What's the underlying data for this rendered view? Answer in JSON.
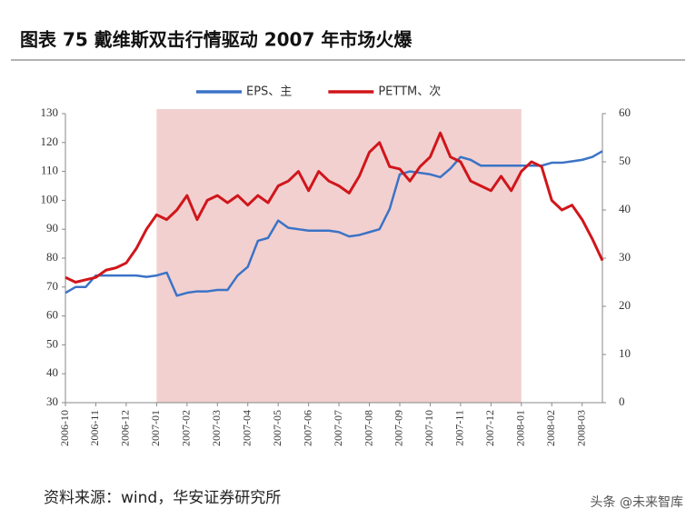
{
  "chart_data": {
    "type": "line",
    "title": "图表 75 戴维斯双击行情驱动 2007 年市场火爆",
    "source": "资料来源：wind，华安证券研究所",
    "watermark": "头条 @未来智库",
    "categories": [
      "2006-10",
      null,
      null,
      "2006-11",
      null,
      null,
      "2006-12",
      null,
      null,
      "2007-01",
      null,
      null,
      "2007-02",
      null,
      null,
      "2007-03",
      null,
      null,
      "2007-04",
      null,
      null,
      "2007-05",
      null,
      null,
      "2007-06",
      null,
      null,
      "2007-07",
      null,
      null,
      "2007-08",
      null,
      null,
      "2007-09",
      null,
      null,
      "2007-10",
      null,
      null,
      "2007-11",
      null,
      null,
      "2007-12",
      null,
      null,
      "2008-01",
      null,
      null,
      "2008-02",
      null,
      null,
      "2008-03",
      null,
      null
    ],
    "highlight": {
      "from": "2007-01",
      "to": "2008-01",
      "color": "#f2d0d0"
    },
    "series": [
      {
        "name": "EPS、主",
        "color": "#3b73c6",
        "axis": "y",
        "values": [
          68,
          70,
          70,
          74,
          74,
          74,
          74,
          74,
          73.5,
          74,
          75,
          67,
          68,
          68.5,
          68.5,
          69,
          69,
          74,
          77,
          86,
          87,
          93,
          90.5,
          90,
          89.5,
          89.5,
          89.5,
          89,
          87.5,
          88,
          89,
          90,
          97,
          109,
          110,
          109.5,
          109,
          108,
          111,
          115,
          114,
          112,
          112,
          112,
          112,
          112,
          112,
          112,
          113,
          113,
          113.5,
          114,
          115,
          117
        ]
      },
      {
        "name": "PETTM、次",
        "color": "#d0161b",
        "axis": "y2",
        "values": [
          26,
          25,
          25.5,
          26,
          27.5,
          28,
          29,
          32,
          36,
          39,
          38,
          40,
          43,
          38,
          42,
          43,
          41.5,
          43,
          41,
          43,
          41.5,
          45,
          46,
          48,
          44,
          48,
          46,
          45,
          43.5,
          47,
          52,
          54,
          49,
          48.5,
          46,
          49,
          51,
          56,
          51,
          50,
          46,
          45,
          44,
          47,
          44,
          48,
          50,
          49,
          42,
          40,
          41,
          38,
          34,
          29.5
        ]
      }
    ],
    "ylim": [
      30,
      130
    ],
    "yticks": [
      30,
      40,
      50,
      60,
      70,
      80,
      90,
      100,
      110,
      120,
      130
    ],
    "y2lim": [
      0,
      60
    ],
    "y2ticks": [
      0,
      10,
      20,
      30,
      40,
      50,
      60
    ],
    "legend": "top"
  }
}
